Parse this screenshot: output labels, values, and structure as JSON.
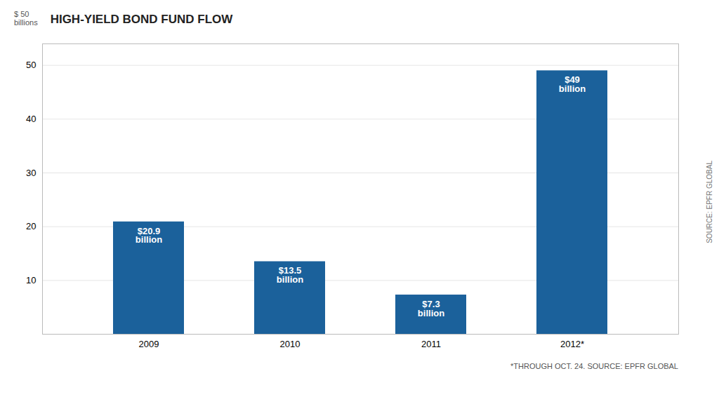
{
  "chart_data": {
    "type": "bar",
    "title": "HIGH-YIELD BOND FUND FLOW",
    "ylabel": "$ 50\nbillions",
    "categories": [
      "2009",
      "2010",
      "2011",
      "2012*"
    ],
    "values": [
      20.9,
      13.5,
      7.3,
      49
    ],
    "value_labels": [
      "$20.9\nbillion",
      "$13.5\nbillion",
      "$7.3\nbillion",
      "$49\nbillion"
    ],
    "color": "#1b619b",
    "ylim": [
      0,
      54
    ],
    "yticks": [
      10,
      20,
      30,
      40,
      50
    ],
    "grid": true,
    "footnote": "*THROUGH OCT. 24. SOURCE: EPFR GLOBAL",
    "side_label": "SOURCE: EPFR GLOBAL"
  }
}
